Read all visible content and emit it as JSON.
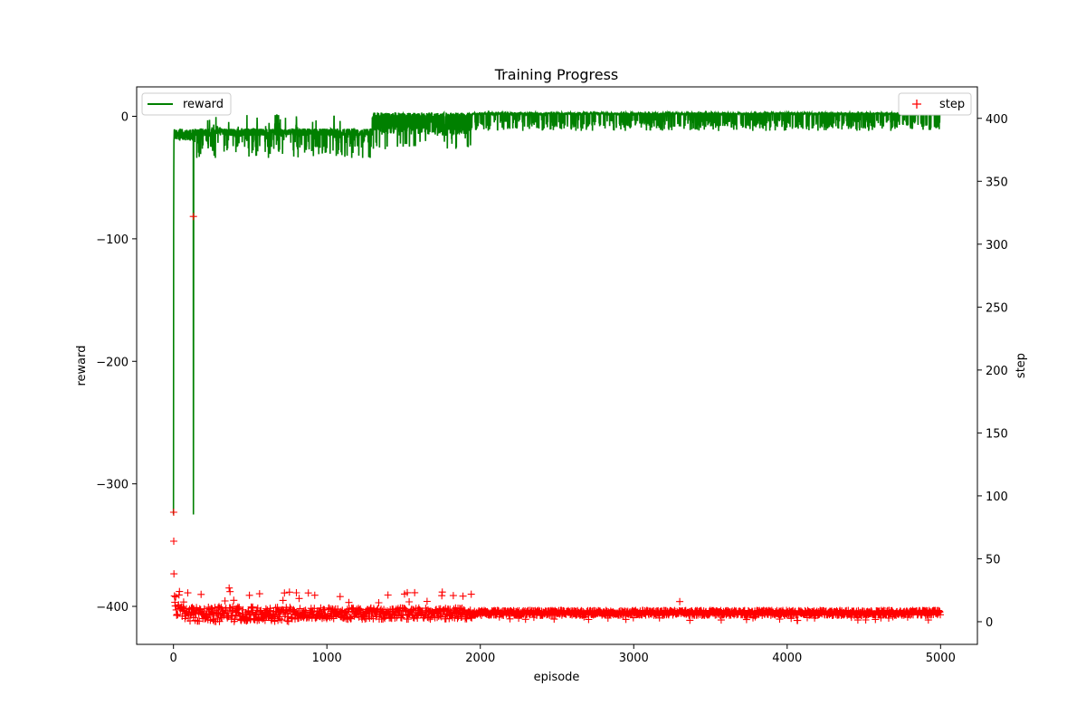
{
  "chart_data": {
    "type": "line",
    "title": "Training Progress",
    "xlabel": "episode",
    "ylabel_left": "reward",
    "ylabel_right": "step",
    "xlim": [
      -240,
      5240
    ],
    "ylim_left": [
      -431,
      24
    ],
    "ylim_right": [
      -18,
      425
    ],
    "x_ticks": [
      0,
      1000,
      2000,
      3000,
      4000,
      5000
    ],
    "y_ticks_left": [
      0,
      -100,
      -200,
      -300,
      -400
    ],
    "y_ticks_right": [
      0,
      50,
      100,
      150,
      200,
      250,
      300,
      350,
      400
    ],
    "grid": false,
    "series": [
      {
        "name": "reward",
        "axis": "left",
        "color": "#008000",
        "style": "line",
        "x_range": [
          0,
          5000
        ],
        "notes": "reward curve"
      },
      {
        "name": "step",
        "axis": "right",
        "color": "#ff0000",
        "style": "marker-plus",
        "x_range": [
          0,
          5000
        ]
      }
    ],
    "legend": [
      {
        "name": "reward",
        "placement": "top-left"
      },
      {
        "name": "step",
        "placement": "top-right"
      }
    ]
  }
}
